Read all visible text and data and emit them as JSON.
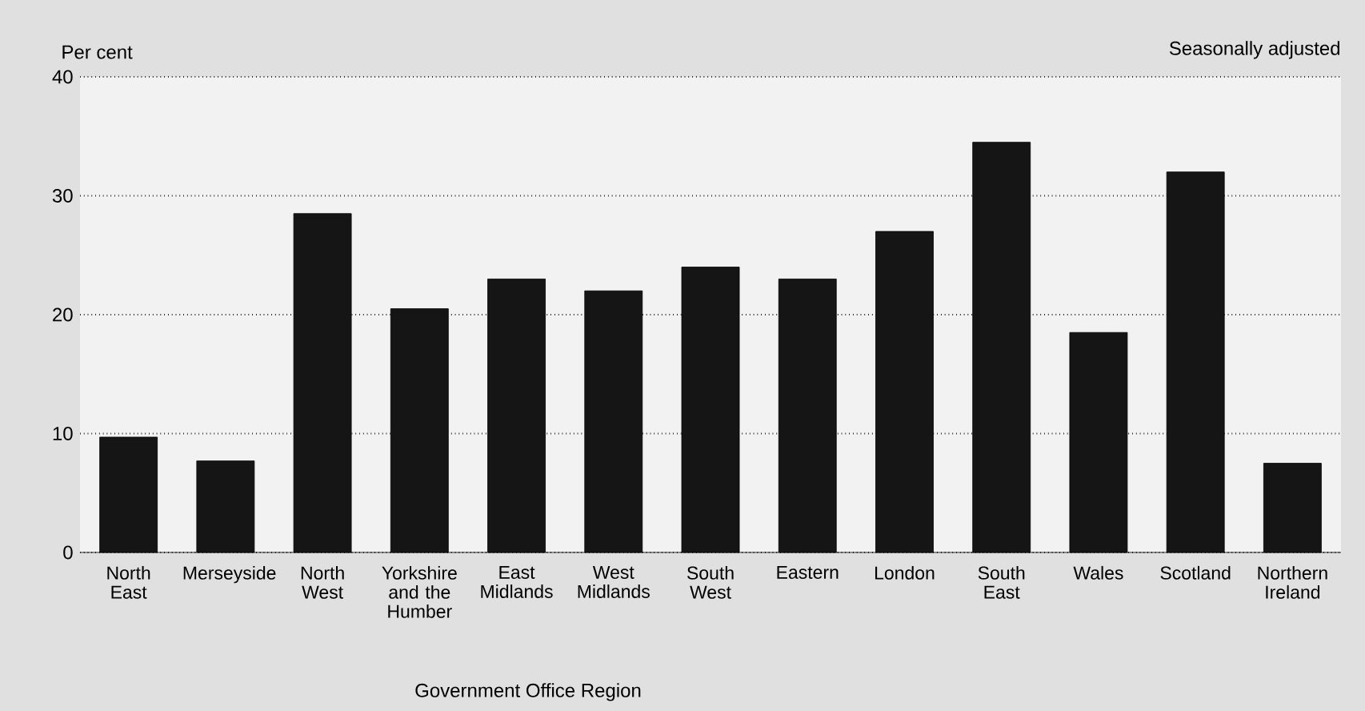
{
  "chart_data": {
    "type": "bar",
    "ylabel": "Per cent",
    "xlabel": "Government Office Region",
    "annotations": [
      "Seasonally adjusted"
    ],
    "categories": [
      "North East",
      "Merseyside",
      "North West",
      "Yorkshire and the Humber",
      "East Midlands",
      "West Midlands",
      "South West",
      "Eastern",
      "London",
      "South East",
      "Wales",
      "Scotland",
      "Northern Ireland"
    ],
    "values": [
      9.7,
      7.7,
      28.5,
      20.5,
      23,
      22,
      24,
      23,
      27,
      34.5,
      18.5,
      32,
      7.5
    ],
    "color": "#151515",
    "ylim": [
      0,
      40
    ],
    "yticks": [
      0,
      10,
      20,
      30,
      40
    ],
    "grid": "y"
  }
}
